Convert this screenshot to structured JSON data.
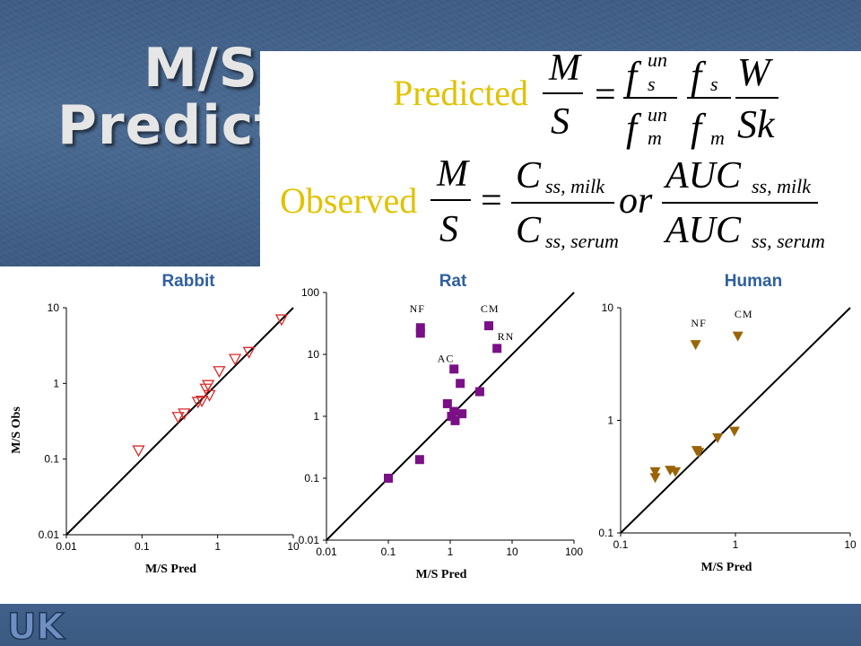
{
  "slide": {
    "title": "M/S Prediction",
    "formula_predicted_label": "Predicted",
    "formula_observed_label": "Observed",
    "formula_or": "or",
    "logo_text": "UK"
  },
  "chart_data": [
    {
      "type": "scatter",
      "title": "Rabbit",
      "xlabel": "M/S Pred",
      "ylabel": "M/S Obs",
      "xscale": "log",
      "yscale": "log",
      "xlim": [
        0.01,
        10
      ],
      "ylim": [
        0.01,
        10
      ],
      "xticks": [
        "0.01",
        "0.1",
        "1",
        "10"
      ],
      "yticks": [
        "0.01",
        "0.1",
        "1",
        "10"
      ],
      "title_color": "#2f5f9f",
      "marker": "open-down-triangle",
      "marker_color": "#d92a2a",
      "identity_line": true,
      "points": [
        {
          "x": 0.09,
          "y": 0.13
        },
        {
          "x": 0.3,
          "y": 0.36
        },
        {
          "x": 0.36,
          "y": 0.4
        },
        {
          "x": 0.55,
          "y": 0.57
        },
        {
          "x": 0.62,
          "y": 0.59
        },
        {
          "x": 0.7,
          "y": 0.85
        },
        {
          "x": 0.78,
          "y": 0.7
        },
        {
          "x": 0.75,
          "y": 0.95
        },
        {
          "x": 1.05,
          "y": 1.45
        },
        {
          "x": 1.7,
          "y": 2.1
        },
        {
          "x": 2.6,
          "y": 2.6
        },
        {
          "x": 7.0,
          "y": 7.0
        }
      ]
    },
    {
      "type": "scatter",
      "title": "Rat",
      "xlabel": "M/S Pred",
      "ylabel": "",
      "xscale": "log",
      "yscale": "log",
      "xlim": [
        0.01,
        100
      ],
      "ylim": [
        0.01,
        100
      ],
      "xticks": [
        "0.01",
        "0.1",
        "1",
        "10",
        "100"
      ],
      "yticks": [
        "0.01",
        "0.1",
        "1",
        "10",
        "100"
      ],
      "title_color": "#2f5f9f",
      "marker": "filled-square",
      "marker_color": "#7a0f86",
      "identity_line": true,
      "points": [
        {
          "x": 0.1,
          "y": 0.1
        },
        {
          "x": 0.32,
          "y": 0.2
        },
        {
          "x": 0.33,
          "y": 22
        },
        {
          "x": 0.33,
          "y": 27
        },
        {
          "x": 0.9,
          "y": 1.6
        },
        {
          "x": 1.05,
          "y": 1.0
        },
        {
          "x": 1.15,
          "y": 1.2
        },
        {
          "x": 1.2,
          "y": 0.85
        },
        {
          "x": 1.55,
          "y": 1.1
        },
        {
          "x": 1.15,
          "y": 5.8
        },
        {
          "x": 1.45,
          "y": 3.4
        },
        {
          "x": 3.0,
          "y": 2.5
        },
        {
          "x": 4.2,
          "y": 29
        },
        {
          "x": 5.7,
          "y": 12.5
        }
      ],
      "annotations": [
        {
          "text": "NF",
          "x": 0.22,
          "y": 48
        },
        {
          "text": "CM",
          "x": 3.1,
          "y": 48
        },
        {
          "text": "RN",
          "x": 5.8,
          "y": 17
        },
        {
          "text": "AC",
          "x": 0.62,
          "y": 7.5
        }
      ]
    },
    {
      "type": "scatter",
      "title": "Human",
      "xlabel": "M/S Pred",
      "ylabel": "",
      "xscale": "log",
      "yscale": "log",
      "xlim": [
        0.1,
        10
      ],
      "ylim": [
        0.1,
        10
      ],
      "xticks": [
        "0.1",
        "1",
        "10"
      ],
      "yticks": [
        "0.1",
        "1",
        "10"
      ],
      "title_color": "#2f5f9f",
      "marker": "filled-down-triangle",
      "marker_color": "#9a6408",
      "identity_line": true,
      "points": [
        {
          "x": 0.2,
          "y": 0.35
        },
        {
          "x": 0.2,
          "y": 0.31
        },
        {
          "x": 0.27,
          "y": 0.36
        },
        {
          "x": 0.3,
          "y": 0.35
        },
        {
          "x": 0.46,
          "y": 0.54
        },
        {
          "x": 0.48,
          "y": 0.52
        },
        {
          "x": 0.7,
          "y": 0.7
        },
        {
          "x": 0.98,
          "y": 0.8
        },
        {
          "x": 0.45,
          "y": 4.7
        },
        {
          "x": 1.05,
          "y": 5.6
        }
      ],
      "annotations": [
        {
          "text": "NF",
          "x": 0.41,
          "y": 6.8
        },
        {
          "text": "CM",
          "x": 0.98,
          "y": 8.2
        }
      ]
    }
  ]
}
